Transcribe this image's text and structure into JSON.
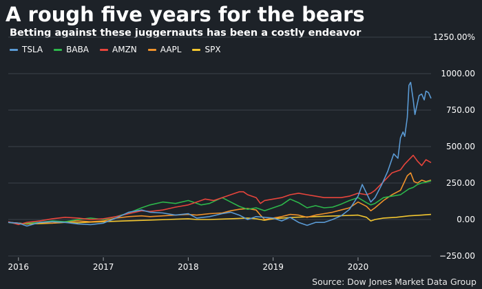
{
  "chart_data": {
    "type": "line",
    "title": "A rough five years for the bears",
    "subtitle": "Betting against these juggernauts has been a costly endeavor",
    "source": "Source: Dow Jones Market Data Group",
    "ylim": [
      -250,
      1250
    ],
    "ytick_labels": [
      {
        "value": 1250,
        "label": "1250.00%"
      },
      {
        "value": 1000,
        "label": "1000.00"
      },
      {
        "value": 750,
        "label": "750.00"
      },
      {
        "value": 500,
        "label": "500.00"
      },
      {
        "value": 250,
        "label": "250.00"
      },
      {
        "value": 0,
        "label": "0.00"
      },
      {
        "value": -250,
        "label": "−250.00"
      }
    ],
    "xlim": [
      2015.88,
      2020.86
    ],
    "xtick_labels": [
      {
        "value": 2016,
        "label": "2016"
      },
      {
        "value": 2017,
        "label": "2017"
      },
      {
        "value": 2018,
        "label": "2018"
      },
      {
        "value": 2019,
        "label": "2019"
      },
      {
        "value": 2020,
        "label": "2020"
      }
    ],
    "gridlines": "horizontal",
    "legend_position": "top-left",
    "series": [
      {
        "name": "TSLA",
        "color": "#5b9bd5",
        "x": [
          2015.88,
          2016.0,
          2016.1,
          2016.25,
          2016.4,
          2016.55,
          2016.7,
          2016.85,
          2017.0,
          2017.15,
          2017.3,
          2017.45,
          2017.55,
          2017.7,
          2017.85,
          2018.0,
          2018.1,
          2018.25,
          2018.4,
          2018.5,
          2018.6,
          2018.7,
          2018.8,
          2018.9,
          2019.0,
          2019.1,
          2019.2,
          2019.3,
          2019.4,
          2019.5,
          2019.6,
          2019.7,
          2019.8,
          2019.9,
          2020.0,
          2020.05,
          2020.1,
          2020.15,
          2020.2,
          2020.28,
          2020.35,
          2020.42,
          2020.47,
          2020.5,
          2020.53,
          2020.55,
          2020.58,
          2020.6,
          2020.62,
          2020.65,
          2020.67,
          2020.7,
          2020.72,
          2020.75,
          2020.78,
          2020.8,
          2020.83,
          2020.86
        ],
        "values": [
          -20,
          -25,
          -45,
          -20,
          -15,
          -20,
          -30,
          -35,
          -25,
          10,
          50,
          65,
          50,
          45,
          30,
          40,
          10,
          20,
          40,
          50,
          30,
          0,
          20,
          15,
          10,
          -10,
          15,
          -20,
          -40,
          -20,
          -20,
          0,
          25,
          70,
          160,
          240,
          180,
          120,
          150,
          240,
          330,
          450,
          420,
          560,
          600,
          570,
          700,
          920,
          940,
          820,
          720,
          800,
          850,
          860,
          820,
          880,
          870,
          830
        ]
      },
      {
        "name": "BABA",
        "color": "#2db84b",
        "x": [
          2015.88,
          2016.0,
          2016.1,
          2016.25,
          2016.4,
          2016.55,
          2016.7,
          2016.85,
          2017.0,
          2017.15,
          2017.3,
          2017.45,
          2017.55,
          2017.7,
          2017.85,
          2018.0,
          2018.08,
          2018.15,
          2018.25,
          2018.4,
          2018.5,
          2018.6,
          2018.7,
          2018.8,
          2018.9,
          2019.0,
          2019.1,
          2019.2,
          2019.3,
          2019.4,
          2019.5,
          2019.6,
          2019.7,
          2019.8,
          2019.9,
          2020.0,
          2020.1,
          2020.15,
          2020.2,
          2020.3,
          2020.4,
          2020.5,
          2020.6,
          2020.65,
          2020.7,
          2020.75,
          2020.8,
          2020.86
        ],
        "values": [
          -20,
          -30,
          -25,
          -20,
          -10,
          -15,
          0,
          10,
          0,
          20,
          45,
          80,
          100,
          120,
          110,
          130,
          115,
          100,
          110,
          150,
          120,
          90,
          70,
          80,
          60,
          80,
          100,
          140,
          115,
          80,
          95,
          80,
          85,
          105,
          130,
          150,
          115,
          100,
          110,
          150,
          160,
          170,
          210,
          220,
          240,
          250,
          255,
          265
        ]
      },
      {
        "name": "AMZN",
        "color": "#e8453c",
        "x": [
          2015.88,
          2016.0,
          2016.1,
          2016.25,
          2016.4,
          2016.55,
          2016.7,
          2016.85,
          2017.0,
          2017.15,
          2017.3,
          2017.45,
          2017.55,
          2017.7,
          2017.85,
          2018.0,
          2018.1,
          2018.2,
          2018.3,
          2018.4,
          2018.5,
          2018.6,
          2018.65,
          2018.7,
          2018.8,
          2018.85,
          2018.9,
          2019.0,
          2019.1,
          2019.2,
          2019.3,
          2019.4,
          2019.5,
          2019.6,
          2019.7,
          2019.8,
          2019.9,
          2020.0,
          2020.1,
          2020.15,
          2020.2,
          2020.3,
          2020.4,
          2020.5,
          2020.55,
          2020.6,
          2020.65,
          2020.7,
          2020.75,
          2020.8,
          2020.86
        ],
        "values": [
          -15,
          -35,
          -20,
          -10,
          5,
          15,
          10,
          0,
          5,
          20,
          40,
          60,
          55,
          65,
          85,
          100,
          120,
          140,
          130,
          150,
          170,
          190,
          190,
          170,
          150,
          110,
          130,
          140,
          150,
          170,
          180,
          170,
          160,
          150,
          150,
          150,
          160,
          180,
          170,
          180,
          200,
          260,
          320,
          340,
          380,
          410,
          440,
          400,
          370,
          410,
          390
        ]
      },
      {
        "name": "AAPL",
        "color": "#f0922b",
        "x": [
          2015.88,
          2016.0,
          2016.1,
          2016.25,
          2016.4,
          2016.55,
          2016.7,
          2016.85,
          2017.0,
          2017.15,
          2017.3,
          2017.45,
          2017.55,
          2017.7,
          2017.85,
          2018.0,
          2018.1,
          2018.25,
          2018.4,
          2018.5,
          2018.6,
          2018.7,
          2018.8,
          2018.85,
          2018.9,
          2019.0,
          2019.1,
          2019.2,
          2019.3,
          2019.4,
          2019.5,
          2019.6,
          2019.7,
          2019.8,
          2019.9,
          2020.0,
          2020.1,
          2020.15,
          2020.2,
          2020.3,
          2020.4,
          2020.5,
          2020.58,
          2020.62,
          2020.66,
          2020.7,
          2020.75,
          2020.8,
          2020.86
        ],
        "values": [
          -20,
          -25,
          -30,
          -20,
          -25,
          -15,
          -10,
          -15,
          -10,
          10,
          20,
          25,
          20,
          25,
          30,
          35,
          30,
          40,
          45,
          60,
          70,
          75,
          65,
          30,
          0,
          10,
          20,
          35,
          30,
          15,
          30,
          40,
          50,
          65,
          80,
          120,
          90,
          60,
          80,
          130,
          170,
          200,
          300,
          320,
          260,
          250,
          270,
          260,
          270
        ]
      },
      {
        "name": "SPX",
        "color": "#f3c730",
        "x": [
          2015.88,
          2016.0,
          2016.1,
          2016.25,
          2016.4,
          2016.55,
          2016.7,
          2016.85,
          2017.0,
          2017.25,
          2017.5,
          2017.75,
          2018.0,
          2018.1,
          2018.25,
          2018.5,
          2018.7,
          2018.8,
          2018.85,
          2018.9,
          2018.95,
          2019.0,
          2019.1,
          2019.25,
          2019.5,
          2019.75,
          2020.0,
          2020.1,
          2020.15,
          2020.2,
          2020.3,
          2020.45,
          2020.6,
          2020.75,
          2020.86
        ],
        "values": [
          -20,
          -25,
          -30,
          -28,
          -25,
          -20,
          -22,
          -18,
          -15,
          -10,
          -5,
          0,
          5,
          0,
          0,
          5,
          10,
          5,
          0,
          -5,
          0,
          5,
          10,
          15,
          20,
          25,
          30,
          15,
          -10,
          0,
          10,
          15,
          25,
          30,
          35
        ]
      }
    ]
  }
}
